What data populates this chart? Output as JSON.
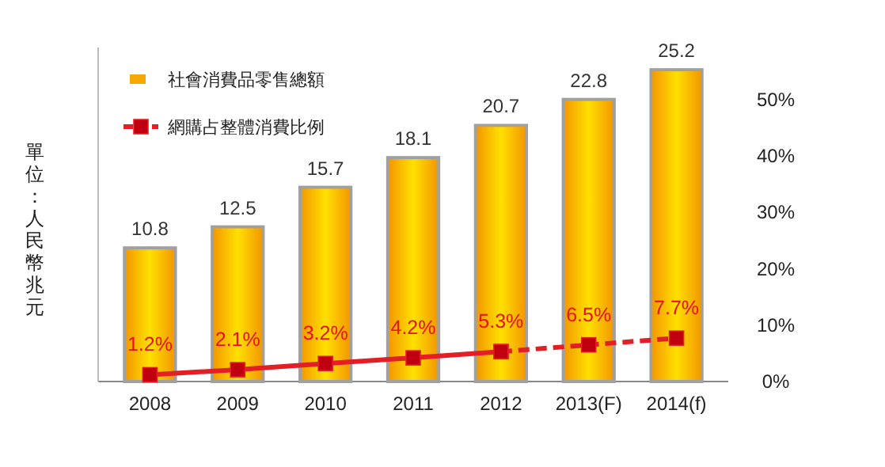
{
  "chart_data": {
    "type": "bar",
    "ylabel": "單位：人民幣兆元",
    "categories": [
      "2008",
      "2009",
      "2010",
      "2011",
      "2012",
      "2013(F)",
      "2014(f)"
    ],
    "series": [
      {
        "name": "社會消費品零售總額",
        "color": "#f5a800",
        "values": [
          10.8,
          12.5,
          15.7,
          18.1,
          20.7,
          22.8,
          25.2
        ],
        "value_labels": [
          "10.8",
          "12.5",
          "15.7",
          "18.1",
          "20.7",
          "22.8",
          "25.2"
        ]
      },
      {
        "name": "網購占整體消費比例",
        "type": "line",
        "axis": "y2",
        "color": "#e31e24",
        "line_style": "solid",
        "values": [
          1.2,
          2.1,
          3.2,
          4.2,
          5.3,
          null,
          null
        ],
        "value_labels": [
          "1.2%",
          "2.1%",
          "3.2%",
          "4.2%",
          "5.3%",
          null,
          null
        ]
      },
      {
        "type": "line",
        "axis": "y2",
        "color": "#e31e24",
        "line_style": "dashed",
        "values": [
          null,
          null,
          null,
          null,
          5.3,
          6.5,
          7.7
        ],
        "value_labels": [
          null,
          null,
          null,
          null,
          null,
          "6.5%",
          "7.7%"
        ]
      }
    ],
    "ylim": [
      0,
      27
    ],
    "y2lim": [
      0,
      50
    ],
    "y2ticks": [
      {
        "value": 0,
        "label": "0%"
      },
      {
        "value": 10,
        "label": "10%"
      },
      {
        "value": 20,
        "label": "20%"
      },
      {
        "value": 30,
        "label": "30%"
      },
      {
        "value": 40,
        "label": "40%"
      },
      {
        "value": 50,
        "label": "50%"
      }
    ],
    "marker": "square",
    "legend": "top left"
  }
}
